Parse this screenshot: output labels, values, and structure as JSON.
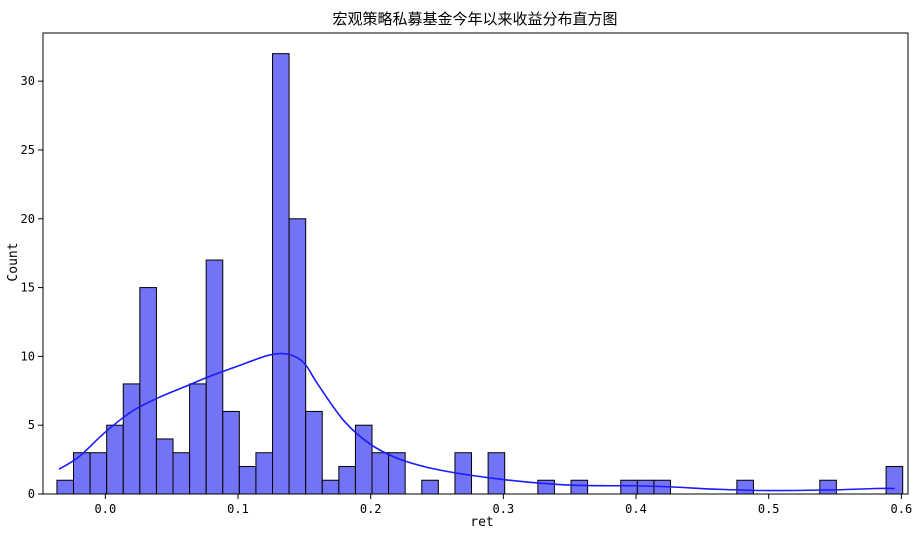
{
  "chart_data": {
    "type": "bar",
    "title": "宏观策略私募基金今年以来收益分布直方图",
    "xlabel": "ret",
    "ylabel": "Count",
    "xlim": [
      -0.047,
      0.605
    ],
    "ylim": [
      0,
      33.5
    ],
    "xticks": [
      0.0,
      0.1,
      0.2,
      0.3,
      0.4,
      0.5,
      0.6
    ],
    "xtick_labels": [
      "0.0",
      "0.1",
      "0.2",
      "0.3",
      "0.4",
      "0.5",
      "0.6"
    ],
    "yticks": [
      0,
      5,
      10,
      15,
      20,
      25,
      30
    ],
    "ytick_labels": [
      "0",
      "5",
      "10",
      "15",
      "20",
      "25",
      "30"
    ],
    "grid": false,
    "bin_start": -0.0365,
    "bin_width": 0.0125,
    "bins": [
      {
        "x": -0.0365,
        "count": 1
      },
      {
        "x": -0.024,
        "count": 3
      },
      {
        "x": -0.0115,
        "count": 3
      },
      {
        "x": 0.001,
        "count": 5
      },
      {
        "x": 0.0135,
        "count": 8
      },
      {
        "x": 0.026,
        "count": 15
      },
      {
        "x": 0.0385,
        "count": 4
      },
      {
        "x": 0.051,
        "count": 3
      },
      {
        "x": 0.0635,
        "count": 8
      },
      {
        "x": 0.076,
        "count": 17
      },
      {
        "x": 0.0885,
        "count": 6
      },
      {
        "x": 0.101,
        "count": 2
      },
      {
        "x": 0.1135,
        "count": 3
      },
      {
        "x": 0.126,
        "count": 32
      },
      {
        "x": 0.1385,
        "count": 20
      },
      {
        "x": 0.151,
        "count": 6
      },
      {
        "x": 0.1635,
        "count": 1
      },
      {
        "x": 0.176,
        "count": 2
      },
      {
        "x": 0.1885,
        "count": 5
      },
      {
        "x": 0.201,
        "count": 3
      },
      {
        "x": 0.2135,
        "count": 3
      },
      {
        "x": 0.2385,
        "count": 1
      },
      {
        "x": 0.2635,
        "count": 3
      },
      {
        "x": 0.2885,
        "count": 3
      },
      {
        "x": 0.326,
        "count": 1
      },
      {
        "x": 0.351,
        "count": 1
      },
      {
        "x": 0.3885,
        "count": 1
      },
      {
        "x": 0.401,
        "count": 1
      },
      {
        "x": 0.4135,
        "count": 1
      },
      {
        "x": 0.476,
        "count": 1
      },
      {
        "x": 0.5385,
        "count": 1
      },
      {
        "x": 0.5885,
        "count": 2
      }
    ],
    "kde": {
      "x": [
        -0.035,
        -0.02,
        0.0,
        0.02,
        0.04,
        0.06,
        0.08,
        0.1,
        0.12,
        0.13,
        0.14,
        0.15,
        0.16,
        0.18,
        0.2,
        0.22,
        0.24,
        0.26,
        0.28,
        0.3,
        0.32,
        0.35,
        0.38,
        0.4,
        0.43,
        0.46,
        0.5,
        0.55,
        0.58,
        0.595
      ],
      "y": [
        1.8,
        2.7,
        4.5,
        6.0,
        7.0,
        7.8,
        8.6,
        9.3,
        10.0,
        10.2,
        10.1,
        9.5,
        8.0,
        5.3,
        3.6,
        2.6,
        2.0,
        1.6,
        1.3,
        1.05,
        0.85,
        0.65,
        0.6,
        0.6,
        0.5,
        0.35,
        0.25,
        0.3,
        0.4,
        0.4
      ]
    },
    "bar_color": "#7373f5",
    "kde_color": "#1a1aff"
  }
}
